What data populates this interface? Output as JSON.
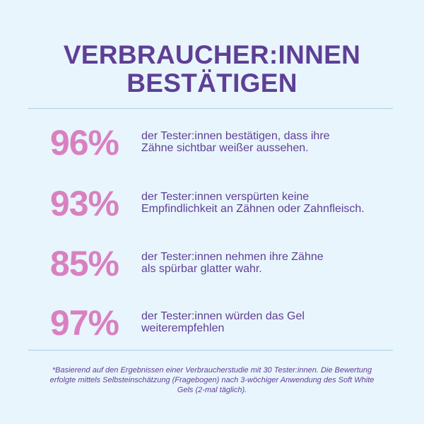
{
  "heading": {
    "line1": "VERBRAUCHER:INNEN",
    "line2": "BESTÄTIGEN"
  },
  "stats": [
    {
      "percent": "96%",
      "line1": "der Tester:innen bestätigen, dass ihre",
      "line2": "Zähne sichtbar weißer aussehen."
    },
    {
      "percent": "93%",
      "line1": "der Tester:innen verspürten keine",
      "line2": "Empfindlichkeit an Zähnen oder Zahnfleisch."
    },
    {
      "percent": "85%",
      "line1": "der Tester:innen nehmen ihre Zähne",
      "line2": "als spürbar glatter wahr."
    },
    {
      "percent": "97%",
      "line1": "der Tester:innen würden das Gel",
      "line2": "weiterempfehlen"
    }
  ],
  "footnote": {
    "line1": "*Basierend auf den Ergebnissen einer Verbraucherstudie mit 30 Tester:innen. Die Bewertung",
    "line2": "erfolgte mittels Selbsteinschätzung (Fragebogen) nach 3-wöchiger Anwendung des Soft White",
    "line3": "Gels (2-mal täglich)."
  },
  "colors": {
    "background": "#e8f5fd",
    "heading": "#5f3f95",
    "percent": "#d980c0",
    "divider": "#a9cfdf"
  }
}
